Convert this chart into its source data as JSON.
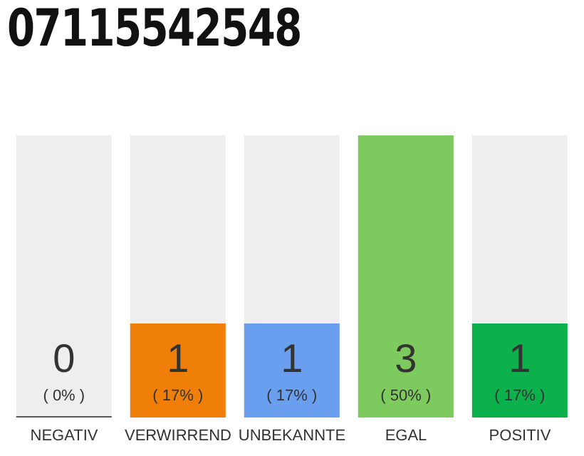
{
  "chart_data": {
    "type": "bar",
    "title": "07115542548",
    "categories": [
      "NEGATIV",
      "VERWIRREND",
      "UNBEKANNTE",
      "EGAL",
      "POSITIV"
    ],
    "values": [
      0,
      1,
      1,
      3,
      1
    ],
    "colors": [
      "#555555",
      "#f07f0a",
      "#6a9ff0",
      "#7dcb5f",
      "#0db14b"
    ],
    "data_labels": true,
    "annotations": [
      "( 0% )",
      "( 17% )",
      "( 17% )",
      "( 50% )",
      "( 17% )"
    ],
    "grid": false,
    "legend": false
  }
}
